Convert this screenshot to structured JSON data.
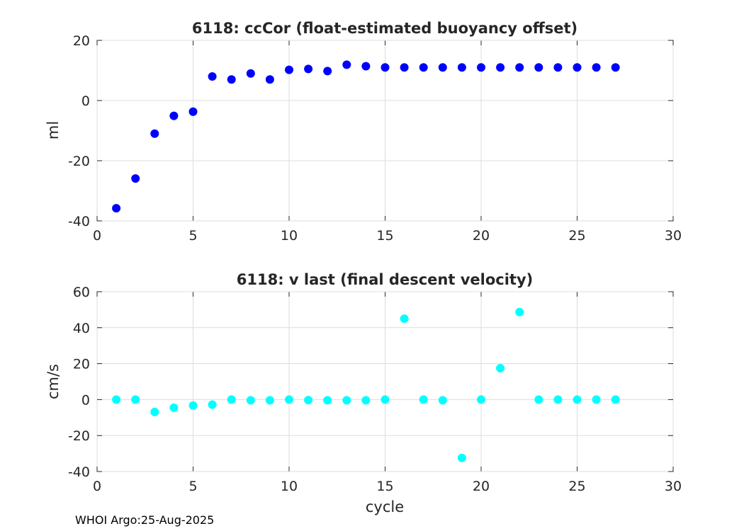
{
  "footer": "WHOI Argo:25-Aug-2025",
  "chart_data": [
    {
      "type": "scatter",
      "title": "6118: ccCor (float-estimated buoyancy offset)",
      "xlabel": "",
      "ylabel": "ml",
      "xlim": [
        0,
        30
      ],
      "ylim": [
        -40,
        20
      ],
      "xticks": [
        0,
        5,
        10,
        15,
        20,
        25,
        30
      ],
      "yticks": [
        -40,
        -20,
        0,
        20
      ],
      "grid": true,
      "marker_color": "#0000ff",
      "x": [
        1,
        2,
        3,
        4,
        5,
        6,
        7,
        8,
        9,
        10,
        11,
        12,
        13,
        14,
        15,
        16,
        17,
        18,
        19,
        20,
        21,
        22,
        23,
        24,
        25,
        26,
        27
      ],
      "y": [
        -35.8,
        -25.9,
        -11.0,
        -5.1,
        -3.7,
        8.0,
        7.0,
        9.0,
        7.0,
        10.2,
        10.5,
        9.8,
        11.9,
        11.4,
        11.0,
        11.0,
        11.0,
        11.0,
        11.0,
        11.0,
        11.0,
        11.0,
        11.0,
        11.0,
        11.0,
        11.0,
        11.0
      ]
    },
    {
      "type": "scatter",
      "title": "6118: v last (final descent velocity)",
      "xlabel": "cycle",
      "ylabel": "cm/s",
      "xlim": [
        0,
        30
      ],
      "ylim": [
        -40,
        60
      ],
      "xticks": [
        0,
        5,
        10,
        15,
        20,
        25,
        30
      ],
      "yticks": [
        -40,
        -20,
        0,
        20,
        40,
        60
      ],
      "grid": true,
      "marker_color": "#00ffff",
      "x": [
        1,
        2,
        3,
        4,
        5,
        6,
        7,
        8,
        9,
        10,
        11,
        12,
        13,
        14,
        15,
        16,
        17,
        18,
        19,
        20,
        21,
        22,
        23,
        24,
        25,
        26,
        27
      ],
      "y": [
        0,
        0,
        -6.9,
        -4.5,
        -3.3,
        -2.8,
        0,
        -0.4,
        -0.4,
        0,
        -0.3,
        -0.4,
        -0.4,
        -0.4,
        0,
        45,
        0,
        -0.4,
        -32.4,
        0,
        17.5,
        48.7,
        0,
        0,
        0,
        0,
        0
      ]
    }
  ]
}
